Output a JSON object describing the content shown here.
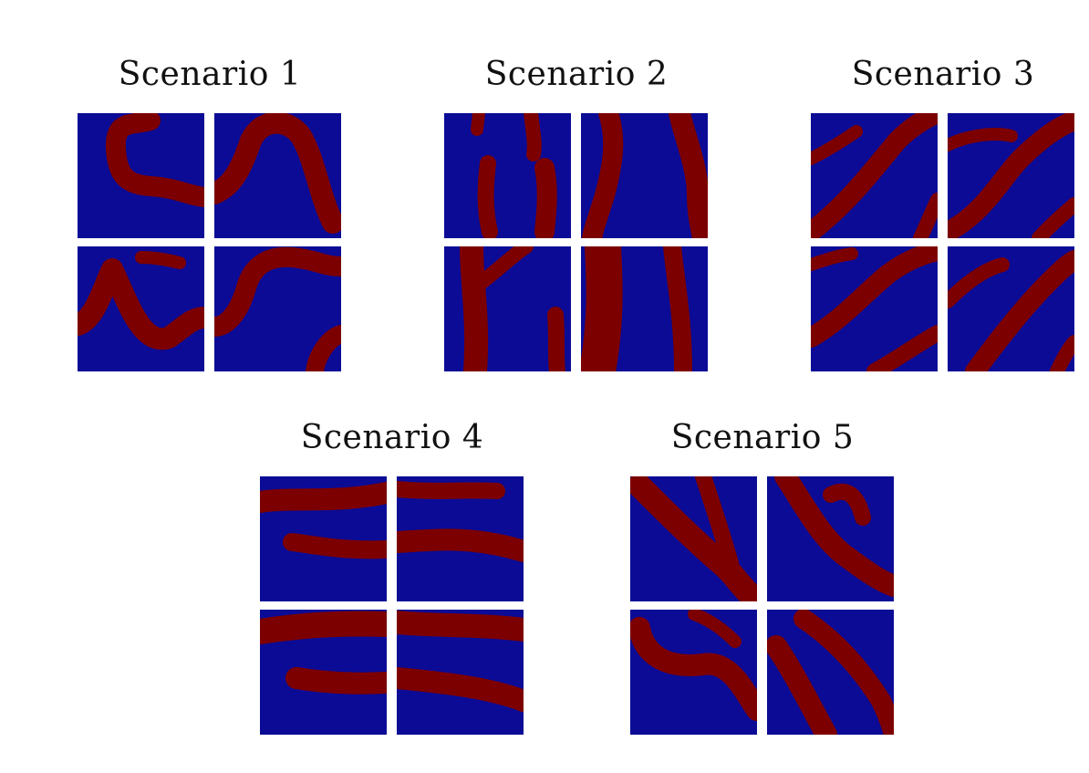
{
  "scenarios": [
    {
      "label": "Scenario 1"
    },
    {
      "label": "Scenario 2"
    },
    {
      "label": "Scenario 3"
    },
    {
      "label": "Scenario 4"
    },
    {
      "label": "Scenario 5"
    }
  ],
  "colors": {
    "background_facies": "#0b0b96",
    "channel_facies": "#7d0000"
  }
}
